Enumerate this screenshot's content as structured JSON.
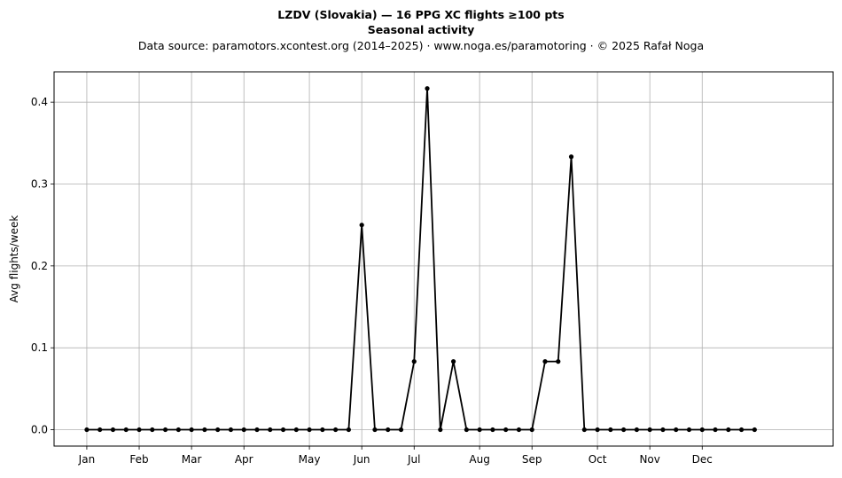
{
  "chart_data": {
    "type": "line",
    "title": "LZDV (Slovakia)  —  16 PPG XC flights ≥100 pts",
    "subtitle": "Seasonal activity",
    "source_note": "Data source: paramotors.xcontest.org (2014–2025)  ·  www.noga.es/paramotoring  ·  © 2025 Rafał Noga",
    "ylabel": "Avg flights/week",
    "xlabel": "",
    "ylim": [
      -0.02,
      0.437
    ],
    "xlim": [
      -2.5,
      57
    ],
    "grid": true,
    "y_ticks": [
      0.0,
      0.1,
      0.2,
      0.3,
      0.4
    ],
    "y_tick_labels": [
      "0.0",
      "0.1",
      "0.2",
      "0.3",
      "0.4"
    ],
    "x_ticks": [
      {
        "label": "Jan",
        "week": 0
      },
      {
        "label": "Feb",
        "week": 4
      },
      {
        "label": "Mar",
        "week": 8
      },
      {
        "label": "Apr",
        "week": 12
      },
      {
        "label": "May",
        "week": 17
      },
      {
        "label": "Jun",
        "week": 21
      },
      {
        "label": "Jul",
        "week": 25
      },
      {
        "label": "Aug",
        "week": 30
      },
      {
        "label": "Sep",
        "week": 34
      },
      {
        "label": "Oct",
        "week": 39
      },
      {
        "label": "Nov",
        "week": 43
      },
      {
        "label": "Dec",
        "week": 47
      }
    ],
    "series": [
      {
        "color": "#000000",
        "x": [
          0,
          1,
          2,
          3,
          4,
          5,
          6,
          7,
          8,
          9,
          10,
          11,
          12,
          13,
          14,
          15,
          16,
          17,
          18,
          19,
          20,
          21,
          22,
          23,
          24,
          25,
          26,
          27,
          28,
          29,
          30,
          31,
          32,
          33,
          34,
          35,
          36,
          37,
          38,
          39,
          40,
          41,
          42,
          43,
          44,
          45,
          46,
          47,
          48,
          49,
          50,
          51
        ],
        "values": [
          0,
          0,
          0,
          0,
          0,
          0,
          0,
          0,
          0,
          0,
          0,
          0,
          0,
          0,
          0,
          0,
          0,
          0,
          0,
          0,
          0,
          0.25,
          0,
          0,
          0,
          0.0833,
          0.4167,
          0,
          0.0833,
          0,
          0,
          0,
          0,
          0,
          0,
          0.0833,
          0.0833,
          0.3333,
          0,
          0,
          0,
          0,
          0,
          0,
          0,
          0,
          0,
          0,
          0,
          0,
          0,
          0
        ]
      }
    ]
  }
}
